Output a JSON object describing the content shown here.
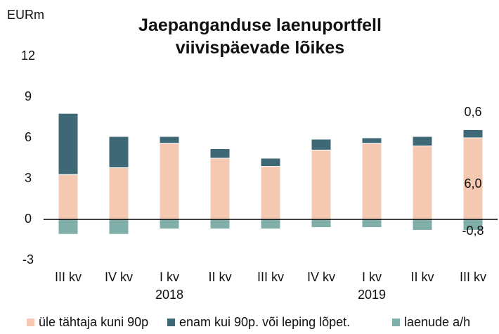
{
  "chart_data": {
    "type": "stacked_bar",
    "title": "Jaepanganduse laenuportfell viivispäevade lõikes",
    "ylabel": "EURm",
    "categories": [
      [
        "III kv"
      ],
      [
        "IV kv"
      ],
      [
        "I kv",
        "2018"
      ],
      [
        "II kv"
      ],
      [
        "III kv"
      ],
      [
        "IV kv"
      ],
      [
        "I kv",
        "2019"
      ],
      [
        "II kv"
      ],
      [
        "III kv"
      ]
    ],
    "series": [
      {
        "name": "üle tähtaja kuni 90p",
        "color": "#f5c8b2",
        "values": [
          3.3,
          3.8,
          5.6,
          4.5,
          3.9,
          5.1,
          5.6,
          5.4,
          6.0
        ],
        "value_labels": [
          null,
          null,
          null,
          null,
          null,
          null,
          null,
          null,
          "6,0"
        ]
      },
      {
        "name": "enam kui 90p. või leping lõpet.",
        "color": "#3f6877",
        "values": [
          4.5,
          2.3,
          0.5,
          0.7,
          0.6,
          0.8,
          0.4,
          0.7,
          0.6
        ],
        "value_labels": [
          null,
          null,
          null,
          null,
          null,
          null,
          null,
          null,
          "0,6"
        ]
      },
      {
        "name": "laenude a/h",
        "color": "#80aea8",
        "values": [
          -1.1,
          -1.1,
          -0.7,
          -0.7,
          -0.7,
          -0.6,
          -0.6,
          -0.8,
          -0.8
        ],
        "value_labels": [
          null,
          null,
          null,
          null,
          null,
          null,
          null,
          null,
          "-0,8"
        ]
      }
    ],
    "ylim": [
      -3,
      12
    ],
    "yticks": [
      -3,
      0,
      3,
      6,
      9,
      12
    ],
    "grid": false
  }
}
